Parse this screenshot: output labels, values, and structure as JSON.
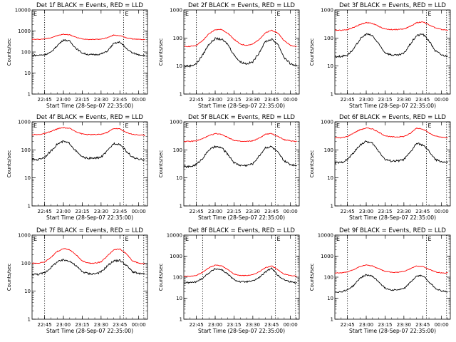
{
  "colors": {
    "events": "#000000",
    "lld": "#ff0000",
    "axis": "#000000",
    "background": "#ffffff"
  },
  "xtick_labels": [
    "22:45",
    "23:00",
    "23:15",
    "23:30",
    "23:45",
    "00:00"
  ],
  "xlabel": "Start Time (28-Sep-07 22:35:00)",
  "ylabel": "Counts/sec",
  "marker_label": "E",
  "chart_data": [
    {
      "type": "line",
      "title": "Det 1f BLACK = Events, RED = LLD",
      "x": [
        "22:35",
        "22:40",
        "22:45",
        "22:50",
        "22:55",
        "23:00",
        "23:05",
        "23:10",
        "23:15",
        "23:20",
        "23:25",
        "23:30",
        "23:35",
        "23:40",
        "23:45",
        "23:50",
        "23:55",
        "00:00",
        "00:05"
      ],
      "ylim": [
        1,
        10000
      ],
      "yscale": "log",
      "ytick_labels": [
        "1",
        "10",
        "100",
        "1000",
        "10000"
      ],
      "vlines": [
        "22:45",
        "23:48",
        "00:04"
      ],
      "series": [
        {
          "name": "LLD",
          "values": [
            400,
            400,
            420,
            480,
            600,
            700,
            660,
            500,
            420,
            400,
            400,
            410,
            480,
            640,
            600,
            480,
            420,
            400,
            390
          ]
        },
        {
          "name": "Events",
          "values": [
            70,
            70,
            75,
            95,
            200,
            380,
            330,
            150,
            90,
            75,
            75,
            80,
            110,
            250,
            300,
            150,
            90,
            75,
            70
          ]
        }
      ]
    },
    {
      "type": "line",
      "title": "Det 2f BLACK = Events, RED = LLD",
      "x": [
        "22:35",
        "22:40",
        "22:45",
        "22:50",
        "22:55",
        "23:00",
        "23:05",
        "23:10",
        "23:15",
        "23:20",
        "23:25",
        "23:30",
        "23:35",
        "23:40",
        "23:45",
        "23:50",
        "23:55",
        "00:00",
        "00:05"
      ],
      "ylim": [
        1,
        1000
      ],
      "yscale": "log",
      "ytick_labels": [
        "1",
        "10",
        "100",
        "1000"
      ],
      "vlines": [
        "22:45",
        "23:48",
        "00:04"
      ],
      "series": [
        {
          "name": "LLD",
          "values": [
            50,
            50,
            55,
            80,
            140,
            200,
            200,
            150,
            90,
            60,
            55,
            60,
            90,
            150,
            190,
            150,
            80,
            55,
            50
          ]
        },
        {
          "name": "Events",
          "values": [
            10,
            10,
            12,
            25,
            60,
            95,
            90,
            60,
            25,
            14,
            12,
            14,
            30,
            75,
            90,
            60,
            20,
            12,
            10
          ]
        }
      ]
    },
    {
      "type": "line",
      "title": "Det 3f BLACK = Events, RED = LLD",
      "x": [
        "22:35",
        "22:40",
        "22:45",
        "22:50",
        "22:55",
        "23:00",
        "23:05",
        "23:10",
        "23:15",
        "23:20",
        "23:25",
        "23:30",
        "23:35",
        "23:40",
        "23:45",
        "23:50",
        "23:55",
        "00:00",
        "00:05"
      ],
      "ylim": [
        1,
        1000
      ],
      "yscale": "log",
      "ytick_labels": [
        "1",
        "10",
        "100",
        "1000"
      ],
      "vlines": [
        "22:45",
        "23:48",
        "00:04"
      ],
      "series": [
        {
          "name": "LLD",
          "values": [
            190,
            190,
            200,
            240,
            300,
            360,
            330,
            260,
            210,
            200,
            200,
            210,
            260,
            350,
            380,
            300,
            230,
            200,
            190
          ]
        },
        {
          "name": "Events",
          "values": [
            22,
            22,
            25,
            40,
            90,
            140,
            120,
            60,
            30,
            25,
            24,
            28,
            60,
            120,
            140,
            80,
            35,
            25,
            22
          ]
        }
      ]
    },
    {
      "type": "line",
      "title": "Det 4f BLACK = Events, RED = LLD",
      "x": [
        "22:35",
        "22:40",
        "22:45",
        "22:50",
        "22:55",
        "23:00",
        "23:05",
        "23:10",
        "23:15",
        "23:20",
        "23:25",
        "23:30",
        "23:35",
        "23:40",
        "23:45",
        "23:50",
        "23:55",
        "00:00",
        "00:05"
      ],
      "ylim": [
        1,
        1000
      ],
      "yscale": "log",
      "ytick_labels": [
        "1",
        "10",
        "100",
        "1000"
      ],
      "vlines": [
        "22:45",
        "23:48",
        "00:04"
      ],
      "series": [
        {
          "name": "LLD",
          "values": [
            350,
            350,
            380,
            450,
            560,
            620,
            580,
            450,
            370,
            350,
            350,
            360,
            420,
            580,
            560,
            420,
            360,
            340,
            330
          ]
        },
        {
          "name": "Events",
          "values": [
            45,
            45,
            55,
            90,
            160,
            200,
            170,
            90,
            55,
            50,
            50,
            55,
            90,
            170,
            160,
            90,
            55,
            45,
            45
          ]
        }
      ]
    },
    {
      "type": "line",
      "title": "Det 5f BLACK = Events, RED = LLD",
      "x": [
        "22:35",
        "22:40",
        "22:45",
        "22:50",
        "22:55",
        "23:00",
        "23:05",
        "23:10",
        "23:15",
        "23:20",
        "23:25",
        "23:30",
        "23:35",
        "23:40",
        "23:45",
        "23:50",
        "23:55",
        "00:00",
        "00:05"
      ],
      "ylim": [
        1,
        1000
      ],
      "yscale": "log",
      "ytick_labels": [
        "1",
        "10",
        "100",
        "1000"
      ],
      "vlines": [
        "22:45",
        "23:48",
        "00:04"
      ],
      "series": [
        {
          "name": "LLD",
          "values": [
            200,
            200,
            210,
            250,
            320,
            380,
            360,
            280,
            220,
            200,
            200,
            210,
            260,
            360,
            380,
            300,
            230,
            210,
            200
          ]
        },
        {
          "name": "Events",
          "values": [
            25,
            25,
            30,
            50,
            100,
            130,
            120,
            70,
            35,
            28,
            28,
            32,
            60,
            120,
            130,
            80,
            40,
            30,
            28
          ]
        }
      ]
    },
    {
      "type": "line",
      "title": "Det 6f BLACK = Events, RED = LLD",
      "x": [
        "22:35",
        "22:40",
        "22:45",
        "22:50",
        "22:55",
        "23:00",
        "23:05",
        "23:10",
        "23:15",
        "23:20",
        "23:25",
        "23:30",
        "23:35",
        "23:40",
        "23:45",
        "23:50",
        "23:55",
        "00:00",
        "00:05"
      ],
      "ylim": [
        1,
        1000
      ],
      "yscale": "log",
      "ytick_labels": [
        "1",
        "10",
        "100",
        "1000"
      ],
      "vlines": [
        "22:45",
        "23:48",
        "00:04"
      ],
      "series": [
        {
          "name": "LLD",
          "values": [
            270,
            270,
            300,
            400,
            520,
            600,
            560,
            420,
            320,
            290,
            290,
            300,
            380,
            600,
            560,
            400,
            310,
            280,
            270
          ]
        },
        {
          "name": "Events",
          "values": [
            35,
            35,
            45,
            80,
            150,
            200,
            170,
            90,
            45,
            40,
            40,
            45,
            80,
            170,
            150,
            90,
            45,
            38,
            35
          ]
        }
      ]
    },
    {
      "type": "line",
      "title": "Det 7f BLACK = Events, RED = LLD",
      "x": [
        "22:35",
        "22:40",
        "22:45",
        "22:50",
        "22:55",
        "23:00",
        "23:05",
        "23:10",
        "23:15",
        "23:20",
        "23:25",
        "23:30",
        "23:35",
        "23:40",
        "23:45",
        "23:50",
        "23:55",
        "00:00",
        "00:05"
      ],
      "ylim": [
        1,
        1000
      ],
      "yscale": "log",
      "ytick_labels": [
        "1",
        "10",
        "100",
        "1000"
      ],
      "vlines": [
        "22:45",
        "23:48",
        "00:04"
      ],
      "series": [
        {
          "name": "LLD",
          "values": [
            100,
            100,
            110,
            160,
            260,
            330,
            300,
            200,
            120,
            100,
            100,
            110,
            180,
            300,
            320,
            220,
            120,
            100,
            95
          ]
        },
        {
          "name": "Events",
          "values": [
            40,
            40,
            45,
            70,
            110,
            130,
            120,
            80,
            50,
            42,
            42,
            48,
            80,
            120,
            125,
            85,
            50,
            42,
            40
          ]
        }
      ]
    },
    {
      "type": "line",
      "title": "Det 8f BLACK = Events, RED = LLD",
      "x": [
        "22:35",
        "22:40",
        "22:45",
        "22:50",
        "22:55",
        "23:00",
        "23:05",
        "23:10",
        "23:15",
        "23:20",
        "23:25",
        "23:30",
        "23:35",
        "23:40",
        "23:45",
        "23:50",
        "23:55",
        "00:00",
        "00:05"
      ],
      "ylim": [
        1,
        10000
      ],
      "yscale": "log",
      "ytick_labels": [
        "1",
        "10",
        "100",
        "1000",
        "10000"
      ],
      "vlines": [
        "22:50",
        "23:48",
        "00:04"
      ],
      "series": [
        {
          "name": "LLD",
          "values": [
            110,
            110,
            120,
            170,
            280,
            380,
            350,
            230,
            140,
            120,
            120,
            130,
            180,
            280,
            350,
            220,
            140,
            120,
            110
          ]
        },
        {
          "name": "Events",
          "values": [
            55,
            55,
            60,
            90,
            160,
            250,
            230,
            140,
            75,
            60,
            60,
            65,
            95,
            170,
            280,
            120,
            75,
            60,
            55
          ]
        }
      ]
    },
    {
      "type": "line",
      "title": "Det 9f BLACK = Events, RED = LLD",
      "x": [
        "22:35",
        "22:40",
        "22:45",
        "22:50",
        "22:55",
        "23:00",
        "23:05",
        "23:10",
        "23:15",
        "23:20",
        "23:25",
        "23:30",
        "23:35",
        "23:40",
        "23:45",
        "23:50",
        "23:55",
        "00:00",
        "00:05"
      ],
      "ylim": [
        1,
        10000
      ],
      "yscale": "log",
      "ytick_labels": [
        "1",
        "10",
        "100",
        "1000",
        "10000"
      ],
      "vlines": [
        "22:45",
        "23:48",
        "00:04"
      ],
      "series": [
        {
          "name": "LLD",
          "values": [
            160,
            160,
            175,
            230,
            320,
            380,
            340,
            250,
            190,
            170,
            170,
            185,
            250,
            340,
            320,
            240,
            180,
            160,
            160
          ]
        },
        {
          "name": "Events",
          "values": [
            20,
            20,
            25,
            40,
            90,
            130,
            110,
            60,
            30,
            25,
            25,
            28,
            55,
            110,
            120,
            60,
            30,
            22,
            20
          ]
        }
      ]
    }
  ]
}
